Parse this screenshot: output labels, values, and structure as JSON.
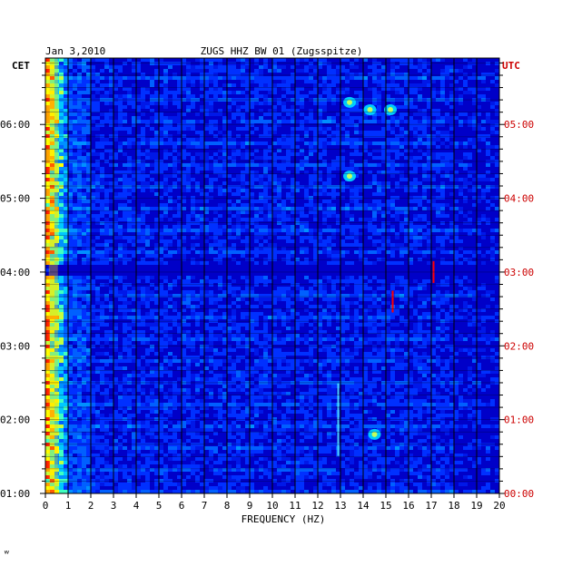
{
  "chart_data": {
    "type": "heatmap",
    "date": "Jan 3,2010",
    "title": "ZUGS HHZ BW 01 (Zugsspitze)",
    "left_axis_label": "CET",
    "right_axis_label": "UTC",
    "xlabel": "FREQUENCY (HZ)",
    "xlim": [
      0,
      20
    ],
    "x_ticks": [
      "0",
      "1",
      "2",
      "3",
      "4",
      "5",
      "6",
      "7",
      "8",
      "9",
      "10",
      "11",
      "12",
      "13",
      "14",
      "15",
      "16",
      "17",
      "18",
      "19",
      "20"
    ],
    "cet_ticks": [
      {
        "label": "06:00",
        "hour_cet": 6
      },
      {
        "label": "05:00",
        "hour_cet": 5
      },
      {
        "label": "04:00",
        "hour_cet": 4
      },
      {
        "label": "03:00",
        "hour_cet": 3
      },
      {
        "label": "02:00",
        "hour_cet": 2
      },
      {
        "label": "01:00",
        "hour_cet": 1
      }
    ],
    "utc_ticks": [
      {
        "label": "05:00",
        "hour_utc": 5
      },
      {
        "label": "04:00",
        "hour_utc": 4
      },
      {
        "label": "03:00",
        "hour_utc": 3
      },
      {
        "label": "02:00",
        "hour_utc": 2
      },
      {
        "label": "01:00",
        "hour_utc": 1
      },
      {
        "label": "00:00",
        "hour_utc": 0
      }
    ],
    "time_range_cet_hours": [
      1,
      6.9
    ],
    "grid": true,
    "colors": {
      "background": "#0000c8",
      "low": "#0018e0",
      "mid": "#00a0ff",
      "high": "#ffff00",
      "peak": "#ff0000",
      "grid": "#000000",
      "utc_text": "#cc0000"
    },
    "quiet_band_cet": 4.0,
    "features": [
      {
        "freq_hz": 0.4,
        "type": "strong low-frequency band"
      },
      {
        "freq_hz": 13.4,
        "hour_cet": 6.3,
        "type": "burst"
      },
      {
        "freq_hz": 14.3,
        "hour_cet": 6.2,
        "type": "burst"
      },
      {
        "freq_hz": 15.2,
        "hour_cet": 6.2,
        "type": "burst"
      },
      {
        "freq_hz": 13.4,
        "hour_cet": 5.3,
        "type": "burst"
      },
      {
        "freq_hz": 15.3,
        "hour_cet": 3.6,
        "type": "spike"
      },
      {
        "freq_hz": 17.1,
        "hour_cet": 4.0,
        "type": "spike"
      },
      {
        "freq_hz": 12.9,
        "hour_cet": 2.0,
        "type": "line"
      },
      {
        "freq_hz": 14.5,
        "hour_cet": 1.8,
        "type": "burst"
      }
    ]
  },
  "footer_mark": "ʷ"
}
